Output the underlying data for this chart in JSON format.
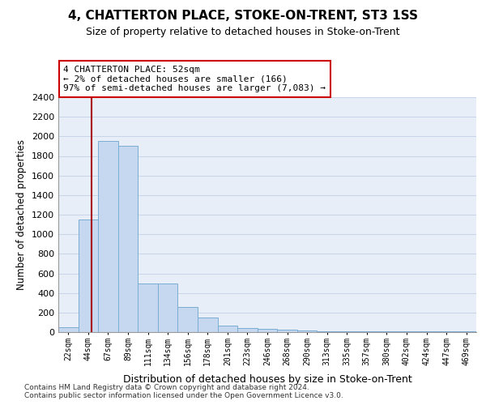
{
  "title": "4, CHATTERTON PLACE, STOKE-ON-TRENT, ST3 1SS",
  "subtitle": "Size of property relative to detached houses in Stoke-on-Trent",
  "xlabel": "Distribution of detached houses by size in Stoke-on-Trent",
  "ylabel": "Number of detached properties",
  "categories": [
    "22sqm",
    "44sqm",
    "67sqm",
    "89sqm",
    "111sqm",
    "134sqm",
    "156sqm",
    "178sqm",
    "201sqm",
    "223sqm",
    "246sqm",
    "268sqm",
    "290sqm",
    "313sqm",
    "335sqm",
    "357sqm",
    "380sqm",
    "402sqm",
    "424sqm",
    "447sqm",
    "469sqm"
  ],
  "values": [
    50,
    1150,
    1950,
    1900,
    500,
    500,
    260,
    150,
    70,
    40,
    35,
    25,
    20,
    12,
    10,
    5,
    5,
    5,
    5,
    5,
    5
  ],
  "bar_color": "#c5d8f0",
  "bar_edgecolor": "#7aadd4",
  "vline_x": 1.15,
  "vline_color": "#aa0000",
  "annotation_text": "4 CHATTERTON PLACE: 52sqm\n← 2% of detached houses are smaller (166)\n97% of semi-detached houses are larger (7,083) →",
  "annotation_box_color": "#ffffff",
  "annotation_box_edgecolor": "#cc0000",
  "ylim": [
    0,
    2400
  ],
  "yticks": [
    0,
    200,
    400,
    600,
    800,
    1000,
    1200,
    1400,
    1600,
    1800,
    2000,
    2200,
    2400
  ],
  "grid_color": "#c8d4e8",
  "background_color": "#e8eef8",
  "footer1": "Contains HM Land Registry data © Crown copyright and database right 2024.",
  "footer2": "Contains public sector information licensed under the Open Government Licence v3.0."
}
